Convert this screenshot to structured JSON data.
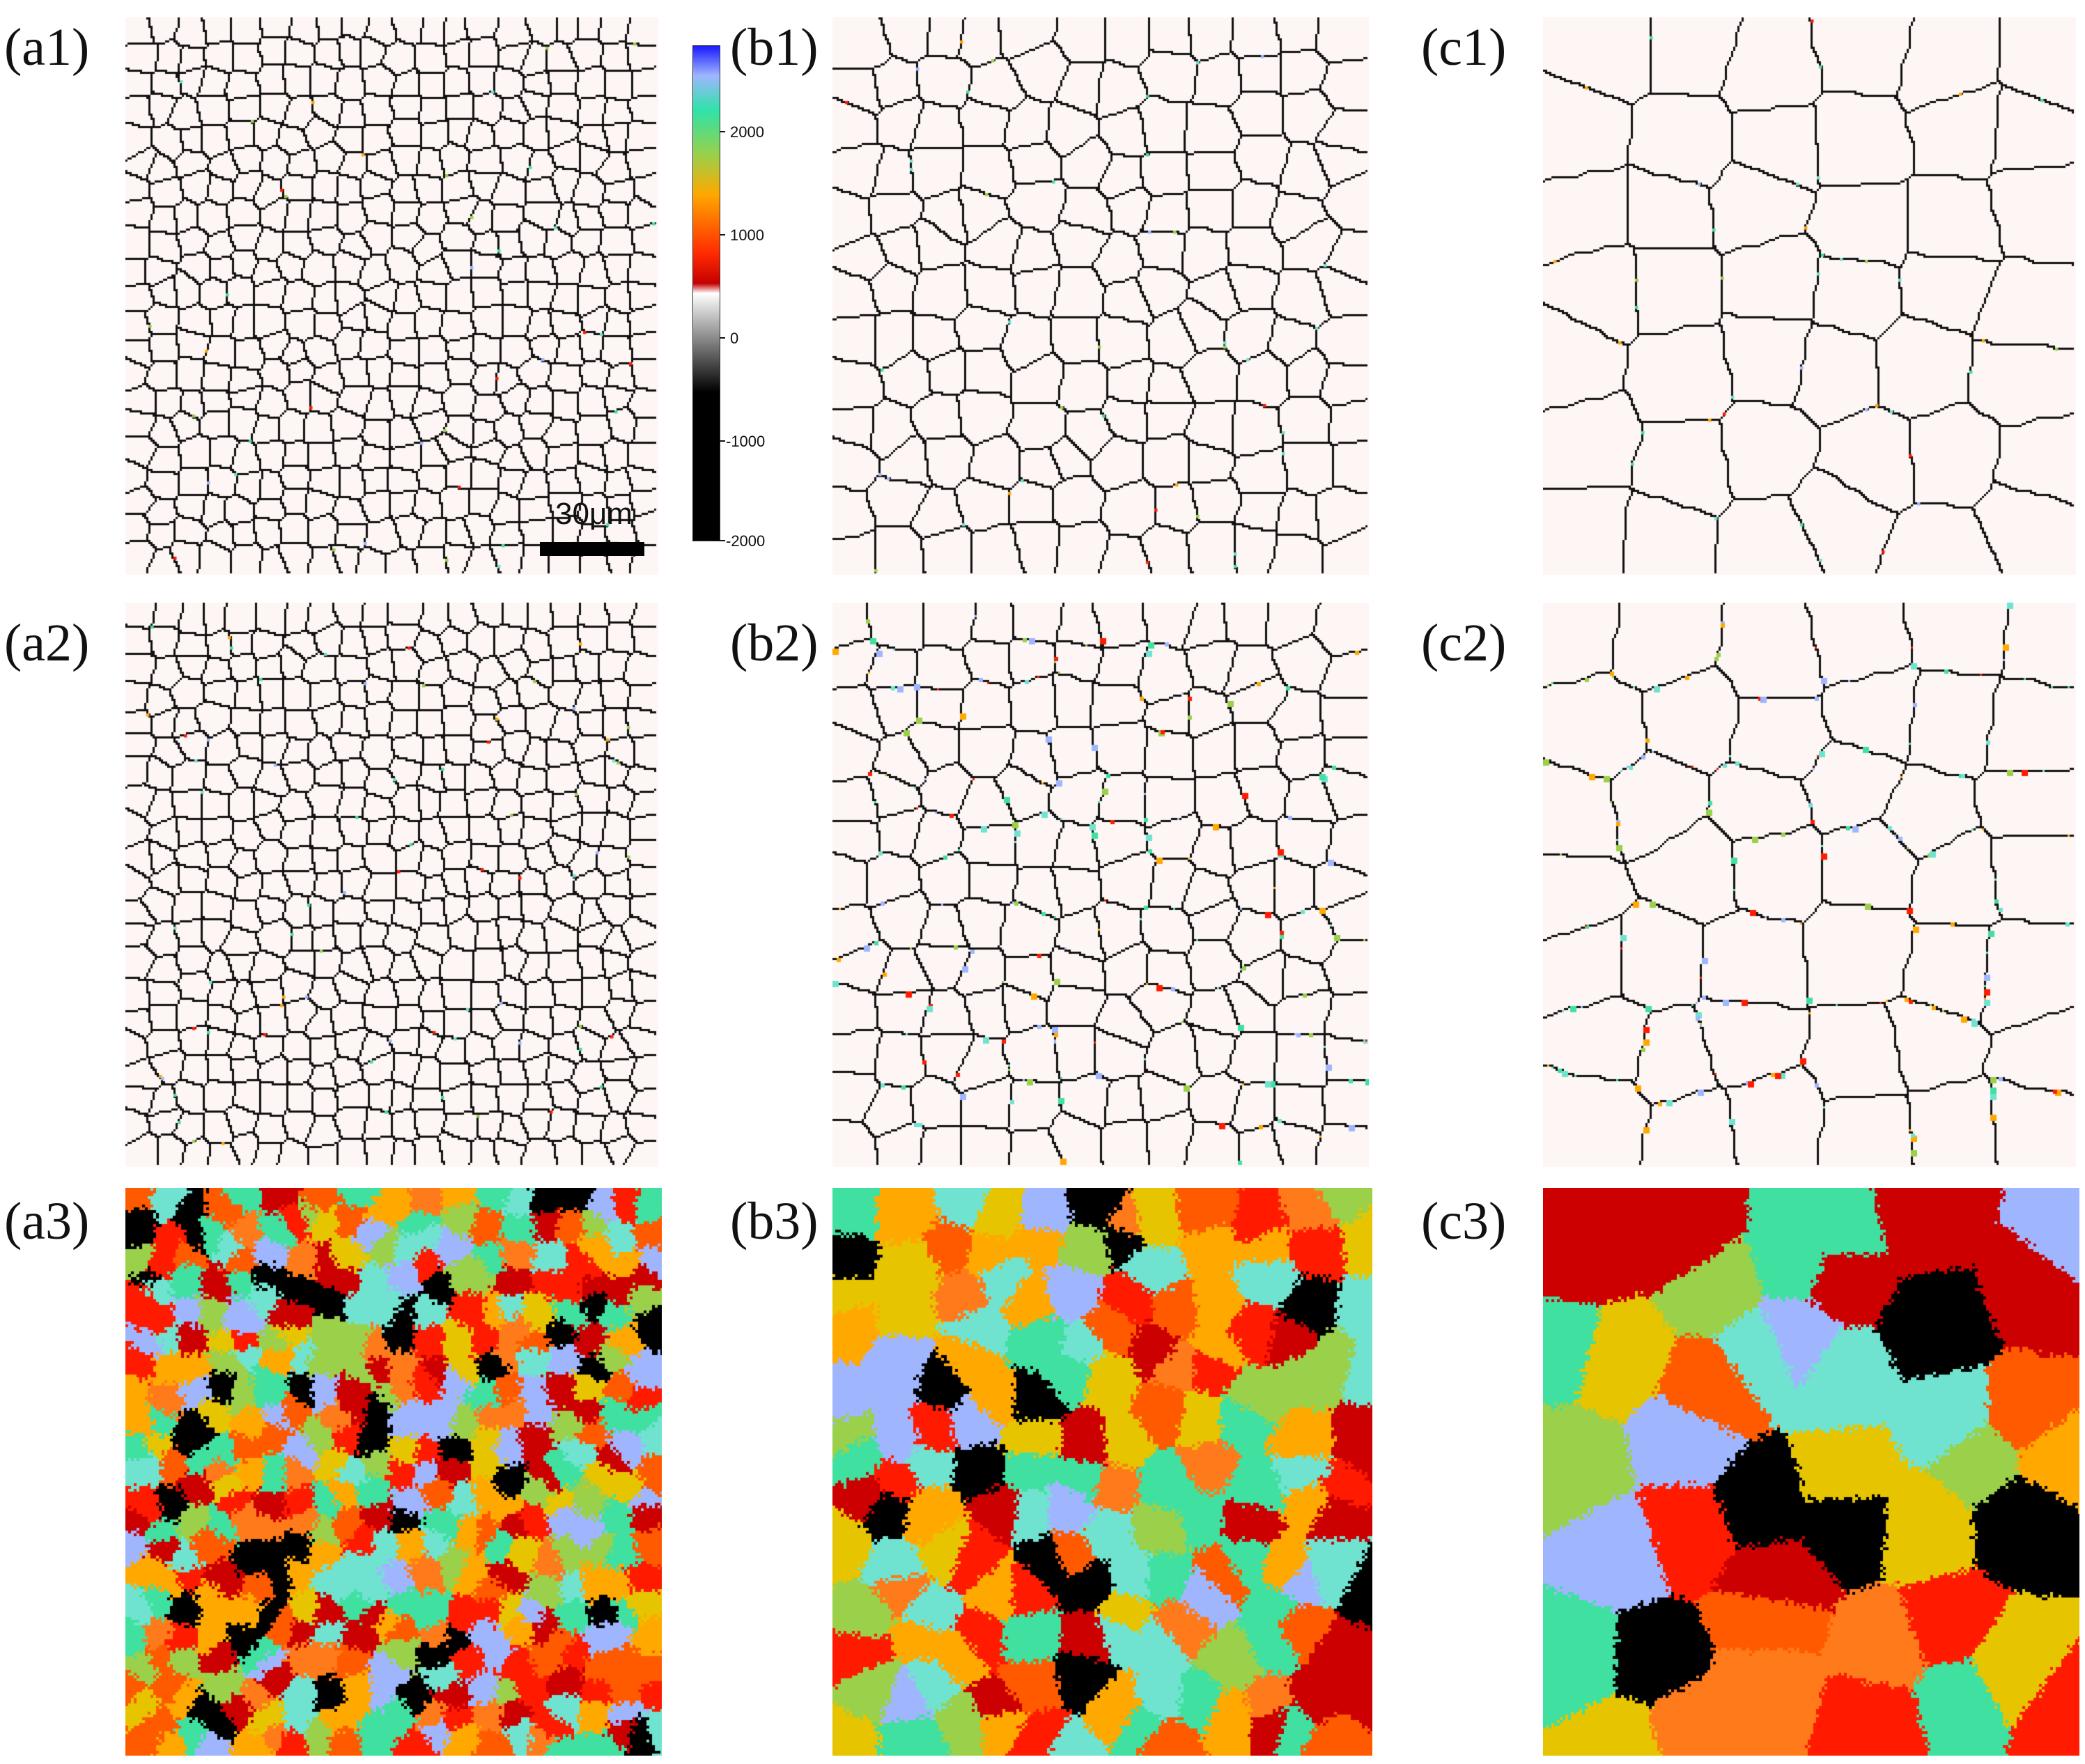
{
  "figure": {
    "panels": [
      {
        "id": "a1",
        "label": "(a1)",
        "kind": "boundaries",
        "grains": "small",
        "dots": "few"
      },
      {
        "id": "b1",
        "label": "(b1)",
        "kind": "boundaries",
        "grains": "medium",
        "dots": "few"
      },
      {
        "id": "c1",
        "label": "(c1)",
        "kind": "boundaries",
        "grains": "large",
        "dots": "few"
      },
      {
        "id": "a2",
        "label": "(a2)",
        "kind": "boundaries",
        "grains": "small",
        "dots": "some"
      },
      {
        "id": "b2",
        "label": "(b2)",
        "kind": "boundaries",
        "grains": "medium",
        "dots": "many"
      },
      {
        "id": "c2",
        "label": "(c2)",
        "kind": "boundaries",
        "grains": "large",
        "dots": "many"
      },
      {
        "id": "a3",
        "label": "(a3)",
        "kind": "orientation",
        "grains": "small"
      },
      {
        "id": "b3",
        "label": "(b3)",
        "kind": "orientation",
        "grains": "medium"
      },
      {
        "id": "c3",
        "label": "(c3)",
        "kind": "orientation",
        "grains": "large"
      }
    ],
    "colorbar": {
      "ticks": [
        "2000",
        "1000",
        "0",
        "-1000",
        "-2000"
      ],
      "colors": {
        "top": "#1a1aff",
        "mid_high": "#2ee3a8",
        "mid": "#ff2a00",
        "zero": "#ffffff",
        "low": "#000000"
      }
    },
    "scalebar": {
      "label": "30μm"
    },
    "palette": [
      "#ff1a00",
      "#ff5a00",
      "#ffa800",
      "#e6c400",
      "#9ad04a",
      "#40e0a0",
      "#6fe3d0",
      "#9fb6ff",
      "#000000",
      "#cc0000",
      "#ff7a1a"
    ],
    "colors": {
      "background": "#fdf6f4",
      "boundary": "#111111"
    }
  }
}
